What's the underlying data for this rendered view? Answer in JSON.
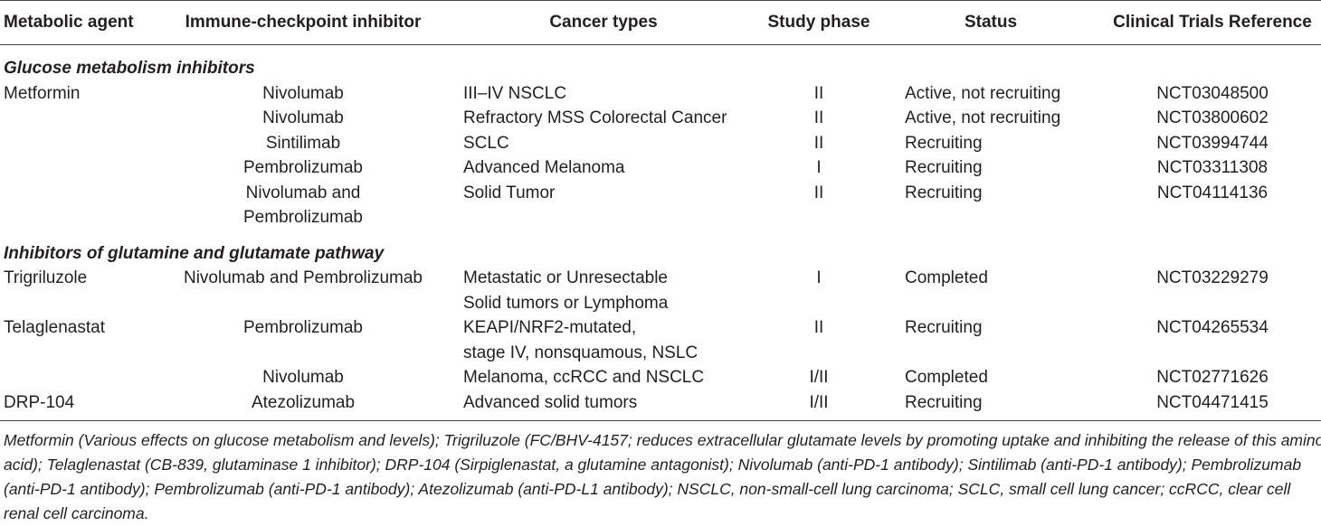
{
  "table": {
    "headers": [
      "Metabolic agent",
      "Immune-checkpoint inhibitor",
      "Cancer types",
      "Study phase",
      "Status",
      "Clinical Trials Reference"
    ],
    "sections": [
      {
        "title": "Glucose metabolism inhibitors",
        "rows": [
          {
            "agent": "Metformin",
            "inhibitor": [
              "Nivolumab"
            ],
            "cancer": [
              "III–IV NSCLC"
            ],
            "phase": "II",
            "status": "Active, not recruiting",
            "ref": "NCT03048500"
          },
          {
            "agent": "",
            "inhibitor": [
              "Nivolumab"
            ],
            "cancer": [
              "Refractory MSS Colorectal Cancer"
            ],
            "phase": "II",
            "status": "Active, not recruiting",
            "ref": "NCT03800602"
          },
          {
            "agent": "",
            "inhibitor": [
              "Sintilimab"
            ],
            "cancer": [
              "SCLC"
            ],
            "phase": "II",
            "status": "Recruiting",
            "ref": "NCT03994744"
          },
          {
            "agent": "",
            "inhibitor": [
              "Pembrolizumab"
            ],
            "cancer": [
              "Advanced Melanoma"
            ],
            "phase": "I",
            "status": "Recruiting",
            "ref": "NCT03311308"
          },
          {
            "agent": "",
            "inhibitor": [
              "Nivolumab and",
              "Pembrolizumab"
            ],
            "cancer": [
              "Solid Tumor"
            ],
            "phase": "II",
            "status": "Recruiting",
            "ref": "NCT04114136"
          }
        ]
      },
      {
        "title": "Inhibitors of glutamine and glutamate pathway",
        "rows": [
          {
            "agent": "Trigriluzole",
            "inhibitor": [
              "Nivolumab and Pembrolizumab"
            ],
            "cancer": [
              "Metastatic or Unresectable",
              "Solid tumors or Lymphoma"
            ],
            "phase": "I",
            "status": "Completed",
            "ref": "NCT03229279"
          },
          {
            "agent": "Telaglenastat",
            "inhibitor": [
              "Pembrolizumab"
            ],
            "cancer": [
              "KEAPI/NRF2-mutated,",
              "stage IV, nonsquamous, NSLC"
            ],
            "phase": "II",
            "status": "Recruiting",
            "ref": "NCT04265534"
          },
          {
            "agent": "",
            "inhibitor": [
              "Nivolumab"
            ],
            "cancer": [
              "Melanoma, ccRCC and NSCLC"
            ],
            "phase": "I/II",
            "status": "Completed",
            "ref": "NCT02771626"
          },
          {
            "agent": "DRP-104",
            "inhibitor": [
              "Atezolizumab"
            ],
            "cancer": [
              "Advanced solid tumors"
            ],
            "phase": "I/II",
            "status": "Recruiting",
            "ref": "NCT04471415"
          }
        ]
      }
    ]
  },
  "footnote": [
    "Metformin (Various effects on glucose metabolism and levels); Trigriluzole (FC/BHV-4157; reduces extracellular glutamate levels by promoting uptake and inhibiting the release of this amino",
    "acid); Telaglenastat (CB-839, glutaminase 1 inhibitor); DRP-104 (Sirpiglenastat, a glutamine antagonist); Nivolumab (anti-PD-1 antibody); Sintilimab (anti-PD-1 antibody); Pembrolizumab",
    "(anti-PD-1 antibody); Pembrolizumab (anti-PD-1 antibody); Atezolizumab (anti-PD-L1 antibody); NSCLC, non-small-cell lung carcinoma; SCLC, small cell lung cancer; ccRCC, clear cell",
    "renal cell carcinoma."
  ]
}
